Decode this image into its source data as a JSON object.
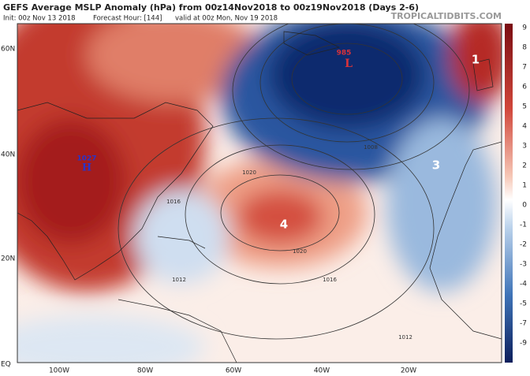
{
  "header": {
    "title": "GEFS Average MSLP Anomaly (hPa) from 00z14Nov2018 to 00z19Nov2018 (Days 2-6)",
    "init": "Init: 00z Nov 13 2018",
    "forecast_hour": "Forecast Hour: [144]",
    "valid": "valid at 00z Mon, Nov 19 2018",
    "site": "TROPICALTIDBITS.COM"
  },
  "map": {
    "lat_labels": [
      "60N",
      "40N",
      "20N",
      "EQ"
    ],
    "lon_labels": [
      "100W",
      "80W",
      "60W",
      "40W",
      "20W"
    ],
    "annotations": [
      "1",
      "3",
      "4"
    ],
    "low": {
      "pressure": "985",
      "symbol": "L"
    },
    "high": {
      "pressure": "1027",
      "symbol": "H"
    },
    "isobar_labels": [
      "1020",
      "1016",
      "1012",
      "1008"
    ]
  },
  "colorbar": {
    "ticks": [
      9,
      8,
      7,
      6,
      5,
      4,
      3,
      2,
      1,
      0,
      -1,
      -2,
      -3,
      -4,
      -5,
      -7,
      -9
    ]
  }
}
